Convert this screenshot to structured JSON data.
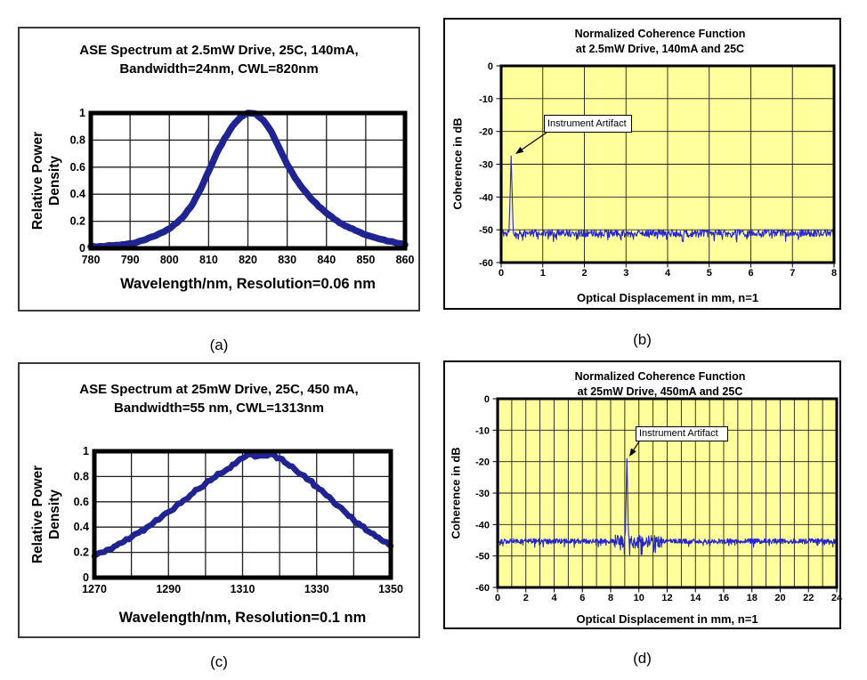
{
  "colors": {
    "spectrum_curve": "#1f2490",
    "coherence_trace": "#2626cf",
    "coherence_plot_bg": "#ffff9c",
    "grid": "#1f1f1f",
    "frame": "#000000",
    "annotation_bg": "#ffffff"
  },
  "captions": {
    "a": "(a)",
    "b": "(b)",
    "c": "(c)",
    "d": "(d)"
  },
  "chart_data": [
    {
      "id": "a",
      "type": "line",
      "subtype": "ase-spectrum",
      "title": [
        "ASE Spectrum at 2.5mW Drive, 25C, 140mA,",
        "Bandwidth=24nm, CWL=820nm"
      ],
      "xlabel": "Wavelength/nm, Resolution=0.06 nm",
      "ylabel": [
        "Relative Power",
        "Density"
      ],
      "xlim": [
        780,
        860
      ],
      "ylim": [
        0,
        1
      ],
      "xticks": [
        780,
        790,
        800,
        810,
        820,
        830,
        840,
        850,
        860
      ],
      "yticks": [
        0,
        0.2,
        0.4,
        0.6,
        0.8,
        1
      ],
      "xgrid_step": 10,
      "ygrid_step": 0.2,
      "grid": true,
      "legend": false,
      "cwl_nm": 820,
      "bandwidth_nm": 24,
      "jitter": 0.004,
      "seed": 3,
      "x": [
        780,
        782,
        784,
        786,
        788,
        790,
        792,
        794,
        796,
        798,
        800,
        802,
        804,
        806,
        808,
        810,
        812,
        814,
        816,
        818,
        820,
        822,
        824,
        826,
        828,
        830,
        832,
        834,
        836,
        838,
        840,
        842,
        844,
        846,
        848,
        850,
        852,
        854,
        856,
        858,
        860
      ],
      "y": [
        0.012,
        0.014,
        0.018,
        0.022,
        0.028,
        0.035,
        0.048,
        0.065,
        0.088,
        0.115,
        0.145,
        0.19,
        0.25,
        0.33,
        0.44,
        0.57,
        0.7,
        0.81,
        0.9,
        0.965,
        1.0,
        0.995,
        0.945,
        0.86,
        0.74,
        0.62,
        0.52,
        0.44,
        0.37,
        0.31,
        0.26,
        0.215,
        0.18,
        0.15,
        0.125,
        0.1,
        0.082,
        0.066,
        0.052,
        0.038,
        0.026
      ]
    },
    {
      "id": "b",
      "type": "line",
      "subtype": "coherence-function",
      "title": [
        "Normalized Coherence Function",
        "at 2.5mW Drive, 140mA and 25C"
      ],
      "xlabel": "Optical Displacement in mm, n=1",
      "ylabel": "Coherence in dB",
      "xlim": [
        0,
        8
      ],
      "ylim": [
        -60,
        0
      ],
      "xticks": [
        0,
        1,
        2,
        3,
        4,
        5,
        6,
        7,
        8
      ],
      "yticks": [
        0,
        -10,
        -20,
        -30,
        -40,
        -50,
        -60
      ],
      "xgrid_step": 1,
      "ygrid_step": 10,
      "grid": true,
      "legend": false,
      "plot_bg": "#ffff9c",
      "baseline_db": -51,
      "noise_db": 1.1,
      "zero_line_x": 0.02,
      "artifact_spike": {
        "x": 0.24,
        "peak_db": -27.5,
        "halfwidth": 0.05
      },
      "annotation": {
        "text": "Instrument Artifact"
      },
      "points": 680,
      "seed": 11
    },
    {
      "id": "c",
      "type": "line",
      "subtype": "ase-spectrum",
      "title": [
        "ASE Spectrum at 25mW Drive, 25C, 450 mA,",
        "Bandwidth=55 nm, CWL=1313nm"
      ],
      "xlabel": "Wavelength/nm, Resolution=0.1 nm",
      "ylabel": [
        "Relative Power",
        "Density"
      ],
      "xlim": [
        1270,
        1350
      ],
      "ylim": [
        0,
        1
      ],
      "xticks": [
        1270,
        1290,
        1310,
        1330,
        1350
      ],
      "yticks": [
        0,
        0.2,
        0.4,
        0.6,
        0.8,
        1
      ],
      "xgrid_step": 10,
      "ygrid_step": 0.2,
      "grid": true,
      "legend": false,
      "cwl_nm": 1313,
      "bandwidth_nm": 55,
      "jitter": 0.012,
      "seed": 5,
      "x": [
        1270,
        1272,
        1274,
        1276,
        1278,
        1280,
        1282,
        1284,
        1286,
        1288,
        1290,
        1292,
        1294,
        1296,
        1298,
        1300,
        1302,
        1304,
        1306,
        1308,
        1310,
        1312,
        1314,
        1316,
        1318,
        1320,
        1322,
        1324,
        1326,
        1328,
        1330,
        1332,
        1334,
        1336,
        1338,
        1340,
        1342,
        1344,
        1346,
        1348,
        1350
      ],
      "y": [
        0.17,
        0.2,
        0.225,
        0.255,
        0.285,
        0.32,
        0.355,
        0.395,
        0.435,
        0.475,
        0.52,
        0.565,
        0.61,
        0.655,
        0.7,
        0.745,
        0.785,
        0.825,
        0.86,
        0.9,
        0.945,
        0.975,
        0.96,
        0.965,
        0.975,
        0.945,
        0.9,
        0.86,
        0.815,
        0.77,
        0.72,
        0.67,
        0.62,
        0.565,
        0.51,
        0.455,
        0.41,
        0.365,
        0.325,
        0.285,
        0.25
      ]
    },
    {
      "id": "d",
      "type": "line",
      "subtype": "coherence-function",
      "title": [
        "Normalized Coherence Function",
        "at 25mW Drive, 450mA and 25C"
      ],
      "xlabel": "Optical Displacement in mm, n=1",
      "ylabel": "Coherence in dB",
      "xlim": [
        0,
        24
      ],
      "ylim": [
        -60,
        0
      ],
      "xticks": [
        0,
        2,
        4,
        6,
        8,
        10,
        12,
        14,
        16,
        18,
        20,
        22,
        24
      ],
      "yticks": [
        0,
        -10,
        -20,
        -30,
        -40,
        -50,
        -60
      ],
      "xgrid_step": 1,
      "ygrid_step": 10,
      "grid": true,
      "legend": false,
      "plot_bg": "#ffff9c",
      "baseline_db": -45.3,
      "noise_db": 0.8,
      "zero_line_x": 0.07,
      "noise_bump": {
        "x0": 8.2,
        "x1": 11.6,
        "extra_db": 1.2
      },
      "artifact_spike": {
        "x": 9.15,
        "peak_db": -19,
        "halfwidth": 0.12
      },
      "annotation": {
        "text": "Instrument Artifact"
      },
      "points": 950,
      "seed": 29
    }
  ]
}
